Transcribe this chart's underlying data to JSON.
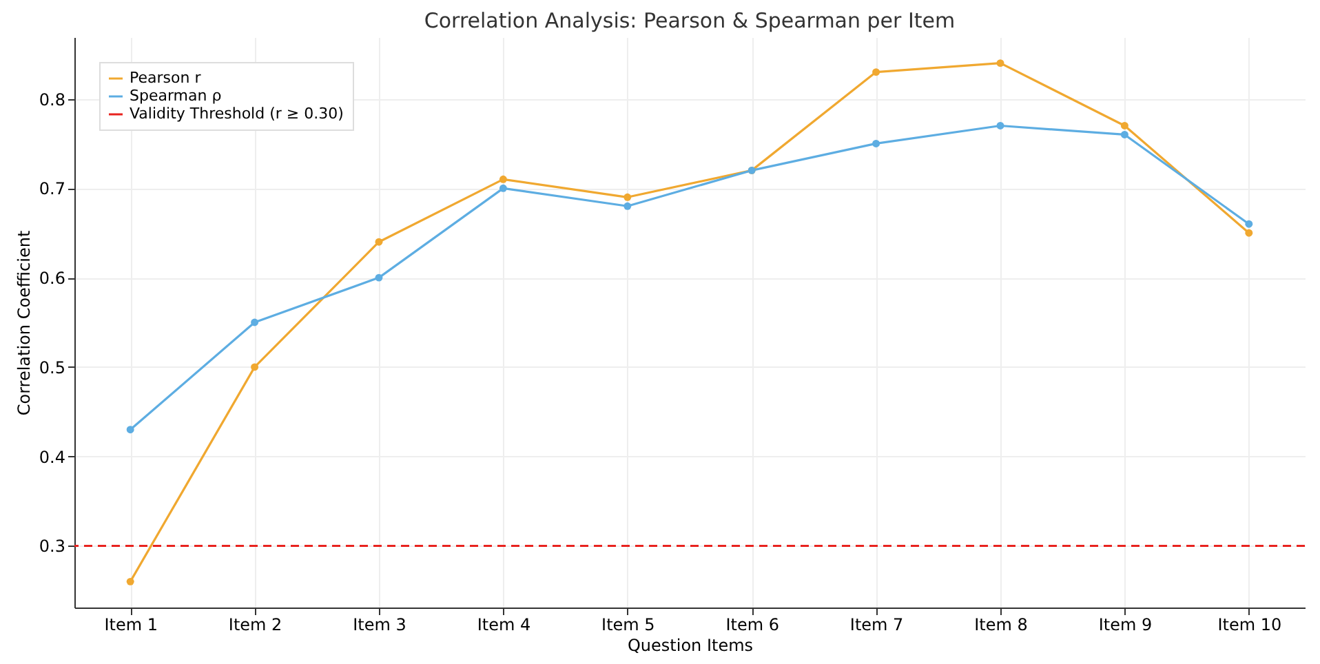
{
  "chart_data": {
    "type": "line",
    "title": "Correlation Analysis: Pearson & Spearman per Item",
    "xlabel": "Question Items",
    "ylabel": "Correlation Coefficient",
    "categories": [
      "Item 1",
      "Item 2",
      "Item 3",
      "Item 4",
      "Item 5",
      "Item 6",
      "Item 7",
      "Item 8",
      "Item 9",
      "Item 10"
    ],
    "series": [
      {
        "name": "Pearson r",
        "color": "#f0a830",
        "values": [
          0.26,
          0.5,
          0.64,
          0.71,
          0.69,
          0.72,
          0.83,
          0.84,
          0.77,
          0.65
        ]
      },
      {
        "name": "Spearman ρ",
        "color": "#5dade2",
        "values": [
          0.43,
          0.55,
          0.6,
          0.7,
          0.68,
          0.72,
          0.75,
          0.77,
          0.76,
          0.66
        ]
      }
    ],
    "ref_lines": [
      {
        "axis": "y",
        "value": 0.3,
        "label": "Validity Threshold (r ≥ 0.30)",
        "color": "#e8231f",
        "line_style": "dashed"
      }
    ],
    "ylim": [
      0.231,
      0.869
    ],
    "yticks": [
      0.3,
      0.4,
      0.5,
      0.6,
      0.7,
      0.8
    ],
    "grid": true,
    "legend": "top left",
    "marker": "circle",
    "line_style": "solid"
  }
}
